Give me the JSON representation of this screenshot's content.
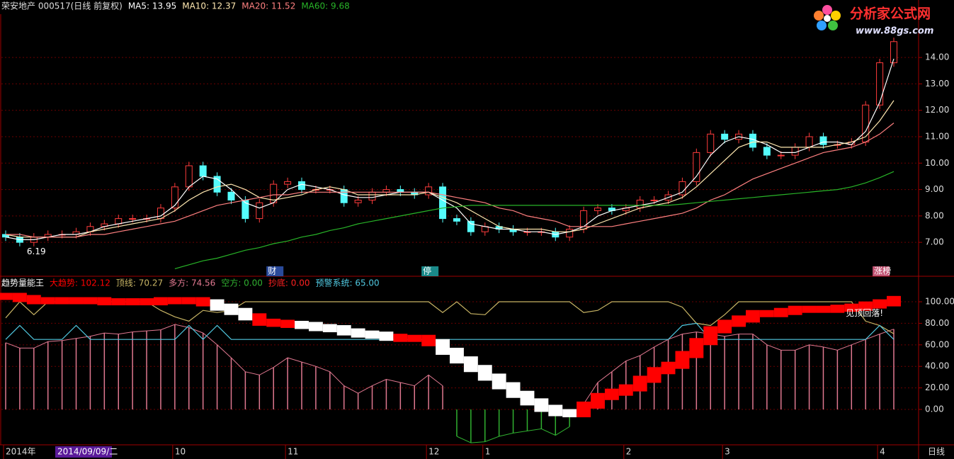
{
  "logo": {
    "name": "分析家公式网",
    "url": "www.88gs.com"
  },
  "footer": {
    "cursor_date": "2014/09/09/二",
    "period": "日线"
  },
  "chart_data": [
    {
      "type": "candlestick",
      "title": "荣安地产 000517(日线 前复权)",
      "categories": [
        "2014年",
        null,
        null,
        null,
        null,
        null,
        null,
        null,
        null,
        null,
        null,
        null,
        "10",
        null,
        null,
        null,
        null,
        null,
        null,
        null,
        "11",
        null,
        null,
        null,
        null,
        null,
        null,
        null,
        null,
        null,
        "12",
        null,
        null,
        null,
        "1",
        null,
        null,
        null,
        null,
        null,
        null,
        null,
        null,
        null,
        "2",
        null,
        null,
        null,
        null,
        null,
        null,
        "3",
        null,
        null,
        null,
        null,
        null,
        null,
        null,
        null,
        null,
        null,
        "4",
        null
      ],
      "open": [
        7.3,
        7.2,
        7.0,
        7.2,
        7.3,
        7.3,
        7.4,
        7.6,
        7.7,
        7.9,
        7.9,
        7.9,
        8.3,
        9.1,
        9.9,
        9.5,
        8.9,
        8.6,
        7.9,
        8.5,
        9.2,
        9.3,
        9.0,
        9.0,
        9.0,
        8.5,
        8.6,
        8.9,
        9.0,
        8.9,
        8.8,
        9.1,
        7.9,
        7.8,
        7.4,
        7.6,
        7.5,
        7.4,
        7.4,
        7.4,
        7.2,
        7.5,
        8.2,
        8.3,
        8.2,
        8.3,
        8.6,
        8.6,
        8.8,
        9.3,
        10.4,
        11.1,
        10.9,
        11.1,
        10.6,
        10.3,
        10.3,
        10.6,
        11.0,
        10.7,
        10.7,
        10.8,
        12.2,
        13.8
      ],
      "high": [
        7.45,
        7.35,
        7.35,
        7.45,
        7.45,
        7.55,
        7.75,
        7.85,
        8.05,
        8.05,
        8.05,
        8.45,
        9.25,
        10.05,
        10.05,
        9.65,
        9.05,
        8.75,
        8.65,
        9.35,
        9.45,
        9.45,
        9.15,
        9.15,
        9.15,
        8.75,
        9.05,
        9.15,
        9.15,
        9.05,
        9.25,
        9.25,
        8.05,
        7.95,
        7.75,
        7.75,
        7.65,
        7.55,
        7.55,
        7.55,
        7.65,
        8.35,
        8.45,
        8.45,
        8.45,
        8.75,
        8.75,
        8.95,
        9.45,
        10.55,
        11.25,
        11.25,
        11.25,
        11.25,
        10.75,
        10.45,
        10.75,
        11.15,
        11.15,
        10.85,
        10.95,
        12.35,
        13.95,
        14.75
      ],
      "low": [
        7.05,
        6.85,
        6.85,
        7.05,
        7.15,
        7.15,
        7.25,
        7.45,
        7.55,
        7.75,
        7.75,
        7.75,
        8.15,
        8.95,
        9.35,
        8.75,
        8.45,
        7.75,
        7.75,
        8.35,
        9.05,
        8.85,
        8.85,
        8.85,
        8.35,
        8.35,
        8.45,
        8.75,
        8.75,
        8.65,
        8.65,
        7.75,
        7.65,
        7.25,
        7.25,
        7.35,
        7.25,
        7.25,
        7.25,
        7.05,
        7.05,
        7.35,
        8.05,
        8.05,
        8.05,
        8.15,
        8.45,
        8.45,
        8.65,
        9.15,
        10.25,
        10.75,
        10.75,
        10.45,
        10.15,
        10.15,
        10.15,
        10.45,
        10.55,
        10.55,
        10.55,
        10.65,
        12.05,
        13.65
      ],
      "close": [
        7.2,
        7.0,
        7.2,
        7.3,
        7.3,
        7.4,
        7.6,
        7.7,
        7.9,
        7.9,
        7.9,
        8.3,
        9.1,
        9.9,
        9.5,
        8.9,
        8.6,
        7.9,
        8.5,
        9.2,
        9.3,
        9.0,
        9.0,
        9.0,
        8.5,
        8.6,
        8.9,
        9.0,
        8.9,
        8.8,
        9.1,
        7.9,
        7.8,
        7.4,
        7.6,
        7.5,
        7.4,
        7.4,
        7.4,
        7.2,
        7.5,
        8.2,
        8.3,
        8.2,
        8.3,
        8.6,
        8.6,
        8.8,
        9.3,
        10.4,
        11.1,
        10.9,
        11.1,
        10.6,
        10.3,
        10.3,
        10.6,
        11.0,
        10.7,
        10.7,
        10.8,
        12.2,
        13.8,
        14.6
      ],
      "up_color": "#ff3c3c",
      "down_color": "#54fcfc",
      "series": [
        {
          "name": "MA5: 13.95",
          "color": "#ffffff",
          "values": [
            7.2,
            7.1,
            7.1,
            7.2,
            7.3,
            7.3,
            7.4,
            7.6,
            7.7,
            7.8,
            7.9,
            8.0,
            8.4,
            9.1,
            9.5,
            9.4,
            9.0,
            8.5,
            8.3,
            8.5,
            9.0,
            9.2,
            9.1,
            9.0,
            8.8,
            8.7,
            8.7,
            8.8,
            8.9,
            8.9,
            8.9,
            8.6,
            8.3,
            7.7,
            7.6,
            7.5,
            7.5,
            7.4,
            7.4,
            7.3,
            7.4,
            7.6,
            8.0,
            8.2,
            8.3,
            8.4,
            8.5,
            8.7,
            8.9,
            9.5,
            10.3,
            10.8,
            11.0,
            10.9,
            10.7,
            10.4,
            10.4,
            10.6,
            10.8,
            10.8,
            10.7,
            11.2,
            12.3,
            13.95
          ]
        },
        {
          "name": "MA10: 12.37",
          "color": "#ffe8b0",
          "values": [
            7.3,
            7.2,
            7.2,
            7.2,
            7.2,
            7.2,
            7.4,
            7.5,
            7.6,
            7.7,
            7.8,
            7.9,
            8.2,
            8.6,
            8.9,
            9.1,
            9.2,
            9.0,
            8.7,
            8.6,
            8.7,
            8.8,
            9.0,
            9.1,
            9.0,
            8.8,
            8.8,
            8.8,
            8.8,
            8.8,
            8.9,
            8.7,
            8.5,
            8.2,
            7.9,
            7.6,
            7.5,
            7.5,
            7.5,
            7.4,
            7.4,
            7.5,
            7.7,
            7.9,
            8.1,
            8.3,
            8.4,
            8.5,
            8.7,
            9.1,
            9.6,
            10.1,
            10.6,
            10.8,
            10.8,
            10.6,
            10.6,
            10.6,
            10.6,
            10.7,
            10.8,
            11.0,
            11.6,
            12.37
          ]
        },
        {
          "name": "MA20: 11.52",
          "color": "#ff8080",
          "values": [
            7.3,
            7.3,
            7.2,
            7.2,
            7.2,
            7.2,
            7.3,
            7.3,
            7.4,
            7.5,
            7.6,
            7.7,
            7.8,
            8.0,
            8.2,
            8.4,
            8.5,
            8.6,
            8.7,
            8.8,
            8.8,
            8.9,
            8.9,
            8.9,
            8.9,
            8.9,
            8.9,
            8.9,
            8.9,
            8.9,
            8.9,
            8.8,
            8.7,
            8.6,
            8.5,
            8.3,
            8.2,
            8.0,
            7.9,
            7.8,
            7.6,
            7.6,
            7.6,
            7.6,
            7.7,
            7.8,
            7.9,
            8.0,
            8.1,
            8.3,
            8.6,
            8.8,
            9.1,
            9.4,
            9.6,
            9.8,
            10.0,
            10.2,
            10.4,
            10.5,
            10.6,
            10.8,
            11.1,
            11.52
          ]
        },
        {
          "name": "MA60: 9.68",
          "color": "#28b428",
          "values": [
            null,
            null,
            null,
            null,
            null,
            null,
            null,
            null,
            null,
            null,
            null,
            null,
            6.0,
            6.15,
            6.3,
            6.4,
            6.55,
            6.7,
            6.8,
            6.95,
            7.05,
            7.2,
            7.3,
            7.45,
            7.55,
            7.7,
            7.8,
            7.9,
            8.0,
            8.1,
            8.2,
            8.3,
            8.35,
            8.4,
            8.4,
            8.4,
            8.4,
            8.4,
            8.4,
            8.4,
            8.4,
            8.4,
            8.4,
            8.4,
            8.4,
            8.4,
            8.4,
            8.4,
            8.45,
            8.5,
            8.55,
            8.6,
            8.65,
            8.7,
            8.75,
            8.8,
            8.85,
            8.9,
            8.95,
            9.0,
            9.1,
            9.25,
            9.45,
            9.68
          ]
        }
      ],
      "annotations": [
        {
          "text": "6.19",
          "index": 1
        },
        {
          "text": "财",
          "index": 19,
          "color": "#2a4a9a"
        },
        {
          "text": "停",
          "index": 30,
          "color": "#1a8a8a"
        },
        {
          "text": "涨榜",
          "index": 62,
          "color": "#c05070"
        }
      ],
      "ylim": [
        5.77,
        15.64
      ],
      "yticks": [
        {
          "value": 7,
          "label": "7.00"
        },
        {
          "value": 8,
          "label": "8.00"
        },
        {
          "value": 9,
          "label": "9.00"
        },
        {
          "value": 10,
          "label": "10.00"
        },
        {
          "value": 11,
          "label": "11.00"
        },
        {
          "value": 12,
          "label": "12.00"
        },
        {
          "value": 13,
          "label": "13.00"
        },
        {
          "value": 14,
          "label": "14.00"
        }
      ],
      "grid": true
    },
    {
      "type": "indicator",
      "title": "趋势量能王",
      "series": [
        {
          "name": "大趋势: 102.12",
          "kind": "band",
          "color": "#ff0000",
          "colors": [
            "#ff0000",
            "#ff0000",
            "#ff0000",
            "#ff0000",
            "#ff0000",
            "#ff0000",
            "#ff0000",
            "#ff0000",
            "#ff0000",
            "#ff0000",
            "#ff0000",
            "#ff0000",
            "#ff0000",
            "#ff0000",
            "#ff0000",
            "#ffffff",
            "#ffffff",
            "#ffffff",
            "#ff0000",
            "#ff0000",
            "#ff0000",
            "#ffffff",
            "#ffffff",
            "#ffffff",
            "#ffffff",
            "#ffffff",
            "#ffffff",
            "#ffffff",
            "#ff0000",
            "#ff0000",
            "#ff0000",
            "#ffffff",
            "#ffffff",
            "#ffffff",
            "#ffffff",
            "#ffffff",
            "#ffffff",
            "#ffffff",
            "#ffffff",
            "#ffffff",
            "#ffffff",
            "#ff0000",
            "#ff0000",
            "#ff0000",
            "#ff0000",
            "#ff0000",
            "#ff0000",
            "#ff0000",
            "#ff0000",
            "#ff0000",
            "#ff0000",
            "#ff0000",
            "#ff0000",
            "#ff0000",
            "#ff0000",
            "#ff0000",
            "#ff0000",
            "#ff0000",
            "#ff0000",
            "#ff0000",
            "#ff0000",
            "#ff0000",
            "#ff0000",
            "#ff0000"
          ],
          "values": [
            105,
            103,
            101,
            101,
            101,
            101,
            101,
            100,
            100,
            100,
            100,
            101,
            101,
            101,
            99,
            95,
            91,
            86,
            81,
            80,
            79,
            78,
            76,
            75,
            72,
            70,
            69,
            67,
            66,
            66,
            62,
            54,
            46,
            38,
            30,
            22,
            14,
            7,
            1,
            -3,
            -4,
            4,
            12,
            16,
            20,
            28,
            36,
            41,
            51,
            63,
            74,
            80,
            84,
            89,
            89,
            91,
            93,
            93,
            93,
            94,
            95,
            97,
            99,
            102.12
          ]
        },
        {
          "name": "顶线: 70.27",
          "kind": "line",
          "color": "#c8b464",
          "values": [
            85,
            100,
            88,
            100,
            100,
            100,
            100,
            100,
            100,
            100,
            100,
            92,
            86,
            82,
            92,
            90,
            92,
            100,
            100,
            100,
            100,
            100,
            100,
            100,
            100,
            100,
            100,
            100,
            100,
            100,
            100,
            90,
            100,
            89,
            88,
            100,
            100,
            100,
            100,
            100,
            100,
            90,
            92,
            100,
            100,
            100,
            100,
            100,
            95,
            80,
            78,
            88,
            100,
            100,
            100,
            100,
            100,
            100,
            100,
            100,
            100,
            82,
            78,
            70.27
          ]
        },
        {
          "name": "多方: 74.56",
          "kind": "bars",
          "color": "#e07890",
          "values": [
            62,
            57,
            57,
            63,
            64,
            66,
            68,
            71,
            70,
            72,
            73,
            74,
            79,
            76,
            71,
            60,
            48,
            35,
            32,
            39,
            48,
            44,
            40,
            35,
            22,
            15,
            22,
            28,
            25,
            22,
            32,
            22,
            null,
            null,
            null,
            null,
            null,
            null,
            null,
            null,
            null,
            5,
            25,
            35,
            45,
            50,
            58,
            65,
            70,
            72,
            70,
            68,
            70,
            70,
            60,
            55,
            55,
            60,
            58,
            55,
            60,
            65,
            70,
            74.56
          ]
        },
        {
          "name": "空方: 0.00",
          "kind": "bars",
          "color": "#30b030",
          "values": [
            null,
            null,
            null,
            null,
            null,
            null,
            null,
            null,
            null,
            null,
            null,
            null,
            null,
            null,
            null,
            null,
            null,
            null,
            null,
            null,
            null,
            null,
            null,
            null,
            null,
            null,
            null,
            null,
            null,
            null,
            null,
            null,
            -25,
            -31,
            -30,
            -25,
            -22,
            -20,
            -18,
            -24,
            -16,
            null,
            null,
            null,
            null,
            null,
            null,
            null,
            null,
            null,
            null,
            null,
            null,
            null,
            null,
            null,
            null,
            null,
            null,
            null,
            null,
            null,
            null,
            null
          ]
        },
        {
          "name": "抄底: 0.00",
          "kind": "none",
          "color": "#ff2020"
        },
        {
          "name": "预警系统: 65.00",
          "kind": "line",
          "color": "#50c8e0",
          "values": [
            65,
            78,
            65,
            65,
            65,
            78,
            65,
            65,
            65,
            65,
            65,
            65,
            65,
            78,
            65,
            78,
            65,
            65,
            65,
            65,
            65,
            65,
            65,
            65,
            65,
            65,
            65,
            65,
            65,
            65,
            65,
            65,
            65,
            65,
            65,
            65,
            65,
            65,
            65,
            65,
            65,
            65,
            65,
            65,
            65,
            65,
            65,
            65,
            78,
            80,
            65,
            65,
            65,
            65,
            65,
            65,
            65,
            65,
            65,
            65,
            65,
            65,
            78,
            65
          ]
        }
      ],
      "annotations": [
        {
          "text": "见顶回落!",
          "index": 61
        }
      ],
      "ylim": [
        -32.9,
        122.4
      ],
      "yticks": [
        {
          "value": 0,
          "label": "0.00"
        },
        {
          "value": 20,
          "label": "20.00"
        },
        {
          "value": 40,
          "label": "40.00"
        },
        {
          "value": 60,
          "label": "60.00"
        },
        {
          "value": 80,
          "label": "80.00"
        },
        {
          "value": 100,
          "label": "100.00"
        }
      ],
      "grid": true
    }
  ]
}
